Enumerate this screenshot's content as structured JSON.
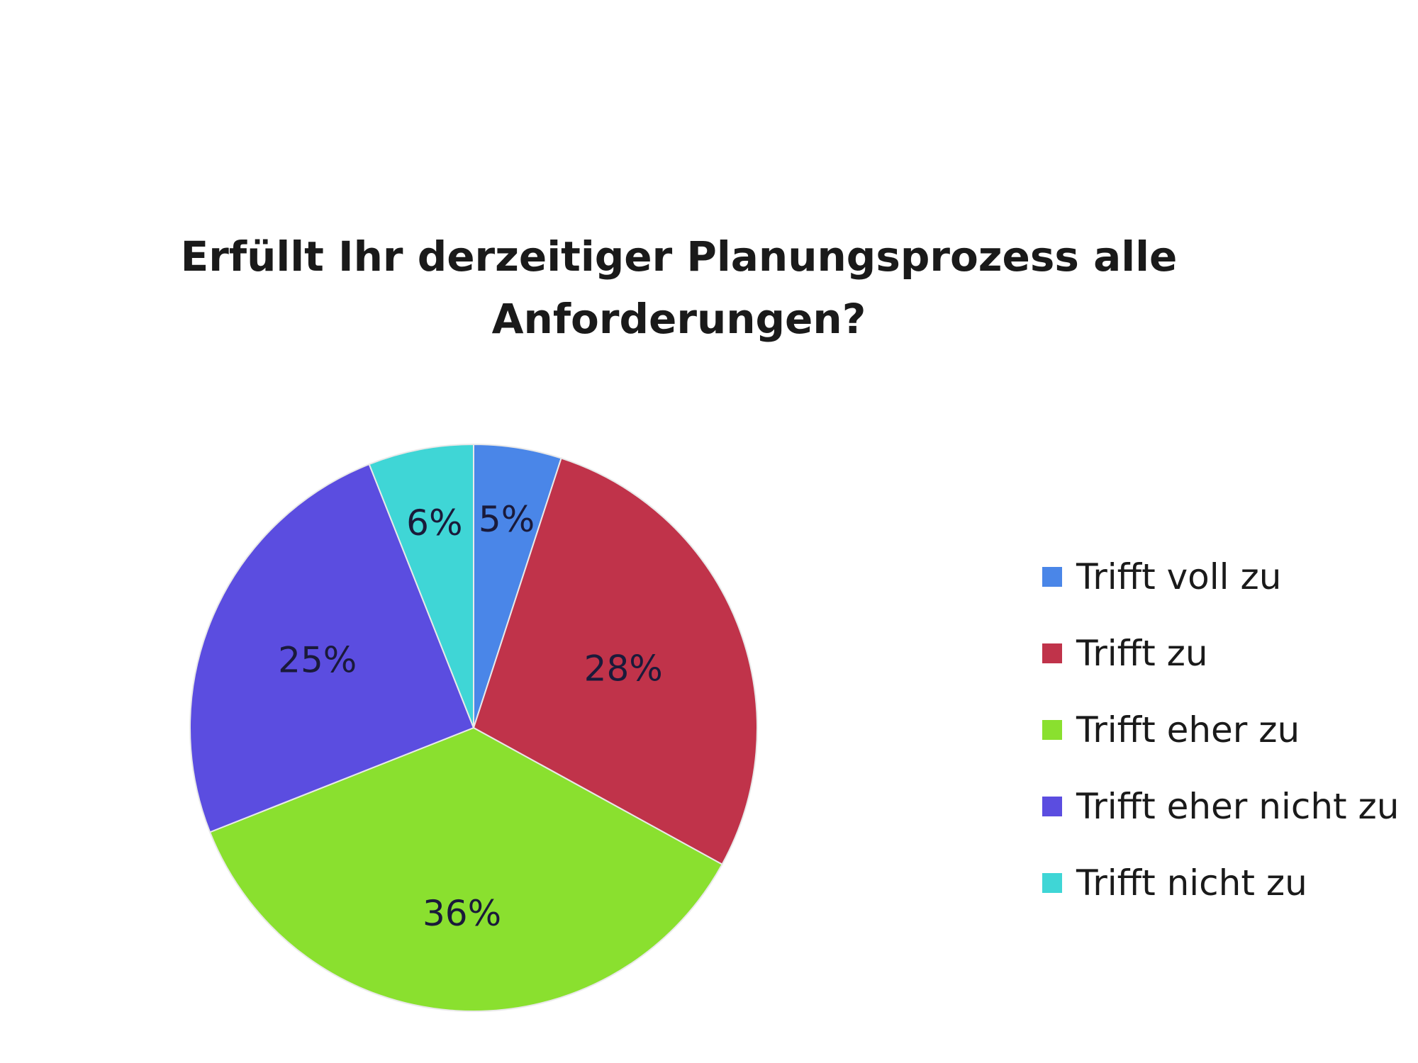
{
  "chart_data": {
    "type": "pie",
    "title": [
      "Erfüllt Ihr derzeitiger Planungsprozess alle",
      "Anforderungen?"
    ],
    "categories": [
      "Trifft voll zu",
      "Trifft zu",
      "Trifft eher zu",
      "Trifft eher nicht zu",
      "Trifft nicht zu"
    ],
    "values": [
      5,
      28,
      36,
      25,
      6
    ],
    "data_labels": [
      "5%",
      "28%",
      "36%",
      "25%",
      "6%"
    ],
    "colors": [
      "#4a86e8",
      "#c0334a",
      "#8ae02f",
      "#5b4de0",
      "#3fd6d6"
    ],
    "start_angle": "12 o'clock",
    "direction": "clockwise",
    "legend_position": "right"
  }
}
